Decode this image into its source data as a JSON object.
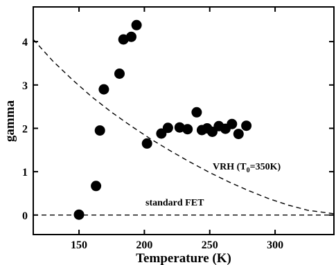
{
  "chart_data": {
    "type": "scatter",
    "title": "",
    "xlabel": "Temperature (K)",
    "ylabel": "gamma",
    "xlim": [
      115,
      345
    ],
    "ylim": [
      -0.45,
      4.8
    ],
    "grid": false,
    "x_ticks": [
      150,
      200,
      250,
      300
    ],
    "x_tick_labels": [
      "150",
      "200",
      "250",
      "300"
    ],
    "y_ticks": [
      0,
      1,
      2,
      3,
      4
    ],
    "y_tick_labels": [
      "0",
      "1",
      "2",
      "3",
      "4"
    ],
    "series": [
      {
        "marker": "filled-circle",
        "color": "#000000",
        "points": [
          {
            "x": 150,
            "y": 0.01
          },
          {
            "x": 163,
            "y": 0.67
          },
          {
            "x": 166,
            "y": 1.95
          },
          {
            "x": 169,
            "y": 2.9
          },
          {
            "x": 181,
            "y": 3.26
          },
          {
            "x": 184,
            "y": 4.05
          },
          {
            "x": 190,
            "y": 4.11
          },
          {
            "x": 194,
            "y": 4.38
          },
          {
            "x": 202,
            "y": 1.65
          },
          {
            "x": 213,
            "y": 1.88
          },
          {
            "x": 218,
            "y": 2.01
          },
          {
            "x": 227,
            "y": 2.02
          },
          {
            "x": 233,
            "y": 1.98
          },
          {
            "x": 240,
            "y": 2.37
          },
          {
            "x": 244,
            "y": 1.96
          },
          {
            "x": 248,
            "y": 2.0
          },
          {
            "x": 252,
            "y": 1.92
          },
          {
            "x": 257,
            "y": 2.05
          },
          {
            "x": 262,
            "y": 1.99
          },
          {
            "x": 267,
            "y": 2.1
          },
          {
            "x": 272,
            "y": 1.87
          },
          {
            "x": 278,
            "y": 2.06
          }
        ]
      }
    ],
    "reference_lines": [
      {
        "label": "VRH (T",
        "label_sub": "0",
        "label_rest": "=350K)",
        "style": "dashed",
        "kind": "curve",
        "points": [
          {
            "x": 115,
            "y": 4.05
          },
          {
            "x": 130,
            "y": 3.55
          },
          {
            "x": 145,
            "y": 3.12
          },
          {
            "x": 160,
            "y": 2.72
          },
          {
            "x": 175,
            "y": 2.37
          },
          {
            "x": 190,
            "y": 2.05
          },
          {
            "x": 205,
            "y": 1.75
          },
          {
            "x": 220,
            "y": 1.48
          },
          {
            "x": 235,
            "y": 1.22
          },
          {
            "x": 250,
            "y": 0.98
          },
          {
            "x": 265,
            "y": 0.76
          },
          {
            "x": 280,
            "y": 0.56
          },
          {
            "x": 295,
            "y": 0.38
          },
          {
            "x": 310,
            "y": 0.23
          },
          {
            "x": 325,
            "y": 0.11
          },
          {
            "x": 345,
            "y": 0.03
          }
        ]
      },
      {
        "label": "standard FET",
        "style": "dashed",
        "kind": "horizontal",
        "y": 0
      }
    ]
  }
}
